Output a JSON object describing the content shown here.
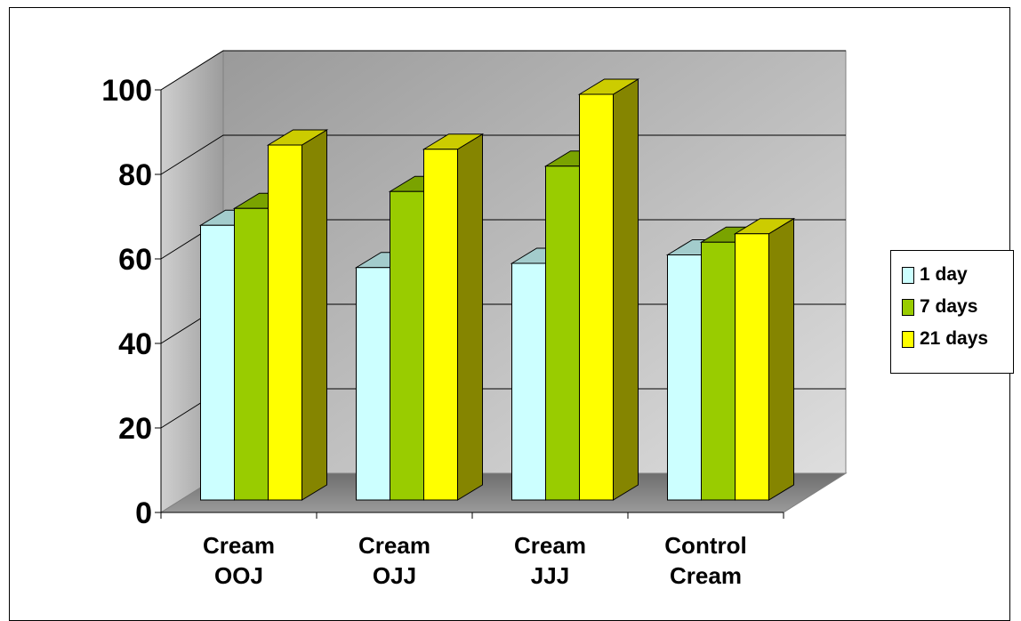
{
  "chart_data": {
    "type": "bar",
    "style": "3d-clustered-column",
    "categories": [
      "Cream\nOOJ",
      "Cream\nOJJ",
      "Cream\nJJJ",
      "Control\nCream"
    ],
    "series": [
      {
        "name": "1 day",
        "values": [
          65,
          55,
          56,
          58
        ],
        "color": "#ccffff"
      },
      {
        "name": "7 days",
        "values": [
          69,
          73,
          79,
          61
        ],
        "color": "#99cc00"
      },
      {
        "name": "21 days",
        "values": [
          84,
          83,
          96,
          63
        ],
        "color": "#ffff00"
      }
    ],
    "ylim": [
      0,
      100
    ],
    "yticks": [
      0,
      20,
      40,
      60,
      80,
      100
    ],
    "legend": "right",
    "grid": true,
    "title": "",
    "xlabel": "",
    "ylabel": ""
  }
}
